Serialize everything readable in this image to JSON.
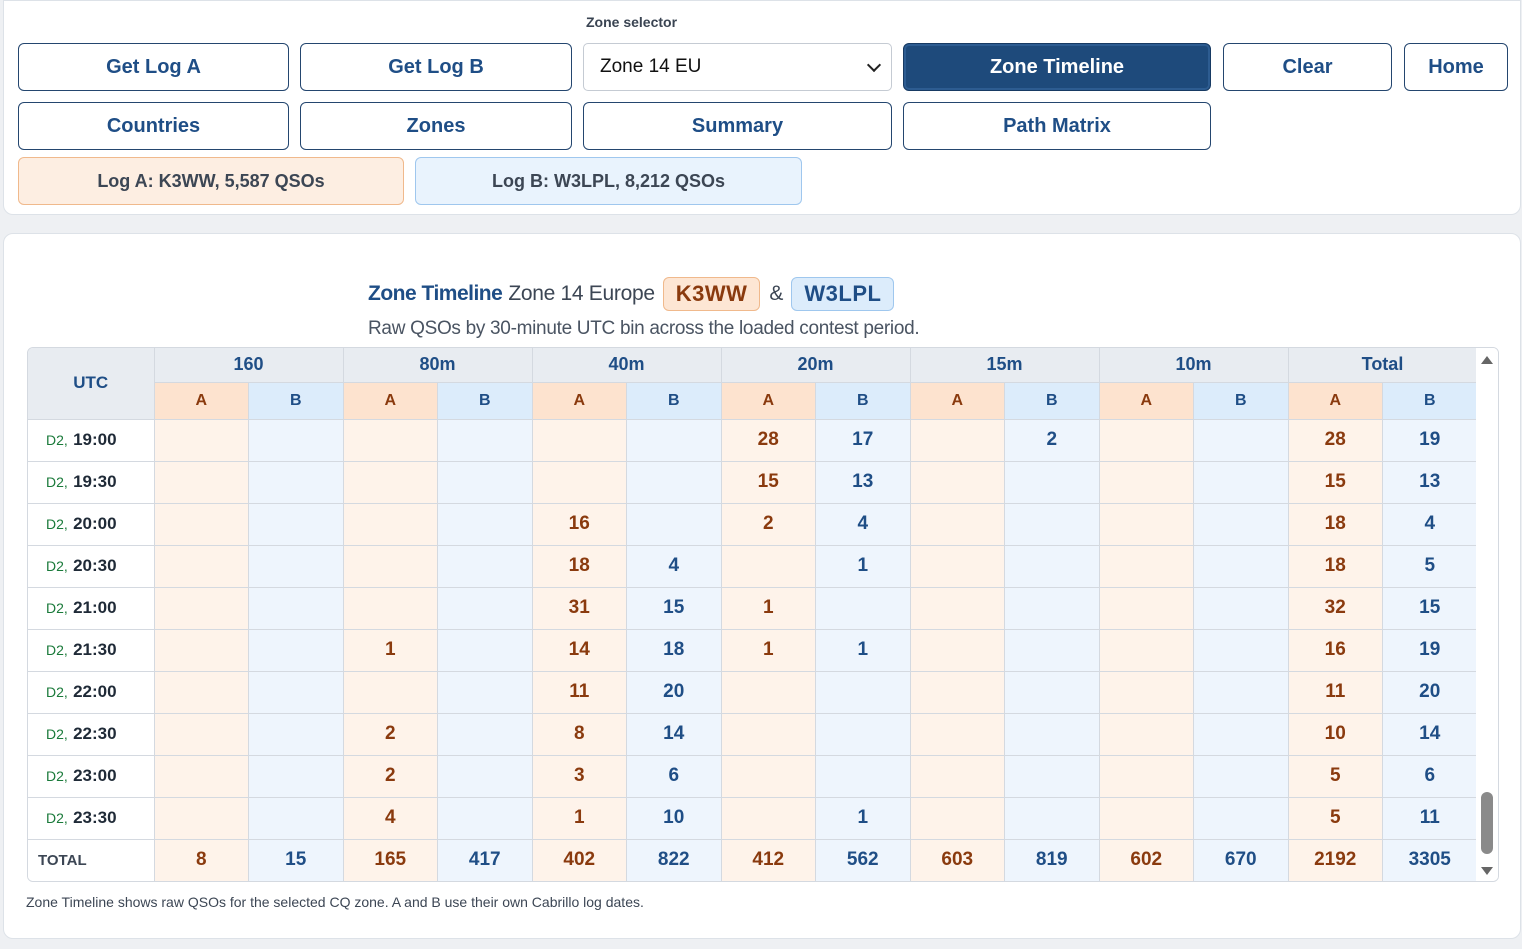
{
  "toolbar": {
    "zone_selector_label": "Zone selector",
    "get_log_a": "Get Log A",
    "get_log_b": "Get Log B",
    "zone_value": "Zone 14 EU",
    "zone_timeline": "Zone Timeline",
    "clear": "Clear",
    "home": "Home",
    "countries": "Countries",
    "zones": "Zones",
    "summary": "Summary",
    "path_matrix": "Path Matrix"
  },
  "logs": {
    "a": "Log A: K3WW, 5,587 QSOs",
    "b": "Log B: W3LPL, 8,212 QSOs"
  },
  "report": {
    "title": "Zone Timeline",
    "zone": "Zone 14 Europe",
    "call_a": "K3WW",
    "amp": "&",
    "call_b": "W3LPL",
    "subtitle": "Raw QSOs by 30-minute UTC bin across the loaded contest period.",
    "footnote": "Zone Timeline shows raw QSOs for the selected CQ zone. A and B use their own Cabrillo log dates."
  },
  "table": {
    "utc_header": "UTC",
    "bands": [
      "160",
      "80m",
      "40m",
      "20m",
      "15m",
      "10m",
      "Total"
    ],
    "a_label": "A",
    "b_label": "B",
    "rows": [
      {
        "day": "D2,",
        "time": "19:00",
        "cells": [
          "",
          "",
          "",
          "",
          "",
          "",
          "28",
          "17",
          "",
          "2",
          "",
          "",
          "28",
          "19"
        ]
      },
      {
        "day": "D2,",
        "time": "19:30",
        "cells": [
          "",
          "",
          "",
          "",
          "",
          "",
          "15",
          "13",
          "",
          "",
          "",
          "",
          "15",
          "13"
        ]
      },
      {
        "day": "D2,",
        "time": "20:00",
        "cells": [
          "",
          "",
          "",
          "",
          "16",
          "",
          "2",
          "4",
          "",
          "",
          "",
          "",
          "18",
          "4"
        ]
      },
      {
        "day": "D2,",
        "time": "20:30",
        "cells": [
          "",
          "",
          "",
          "",
          "18",
          "4",
          "",
          "1",
          "",
          "",
          "",
          "",
          "18",
          "5"
        ]
      },
      {
        "day": "D2,",
        "time": "21:00",
        "cells": [
          "",
          "",
          "",
          "",
          "31",
          "15",
          "1",
          "",
          "",
          "",
          "",
          "",
          "32",
          "15"
        ]
      },
      {
        "day": "D2,",
        "time": "21:30",
        "cells": [
          "",
          "",
          "1",
          "",
          "14",
          "18",
          "1",
          "1",
          "",
          "",
          "",
          "",
          "16",
          "19"
        ]
      },
      {
        "day": "D2,",
        "time": "22:00",
        "cells": [
          "",
          "",
          "",
          "",
          "11",
          "20",
          "",
          "",
          "",
          "",
          "",
          "",
          "11",
          "20"
        ]
      },
      {
        "day": "D2,",
        "time": "22:30",
        "cells": [
          "",
          "",
          "2",
          "",
          "8",
          "14",
          "",
          "",
          "",
          "",
          "",
          "",
          "10",
          "14"
        ]
      },
      {
        "day": "D2,",
        "time": "23:00",
        "cells": [
          "",
          "",
          "2",
          "",
          "3",
          "6",
          "",
          "",
          "",
          "",
          "",
          "",
          "5",
          "6"
        ]
      },
      {
        "day": "D2,",
        "time": "23:30",
        "cells": [
          "",
          "",
          "4",
          "",
          "1",
          "10",
          "",
          "1",
          "",
          "",
          "",
          "",
          "5",
          "11"
        ]
      }
    ],
    "total": {
      "label": "TOTAL",
      "cells": [
        "8",
        "15",
        "165",
        "417",
        "402",
        "822",
        "412",
        "562",
        "603",
        "819",
        "602",
        "670",
        "2192",
        "3305"
      ]
    }
  },
  "colors": {
    "accent": "#1e4a7b",
    "log_a": "#8a3a0e",
    "log_b": "#1f4e86"
  }
}
